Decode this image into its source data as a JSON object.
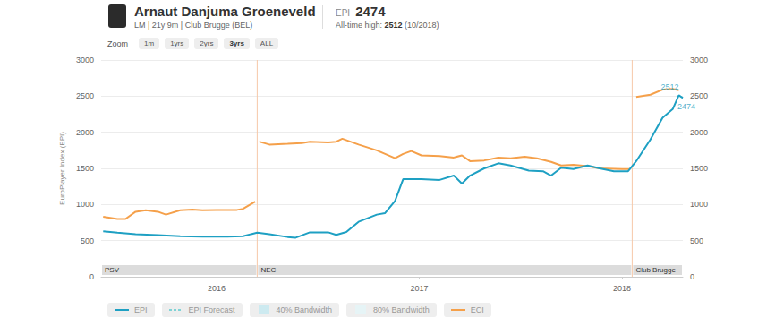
{
  "header": {
    "name": "Arnaut Danjuma Groeneveld",
    "info": "LM | 21y 9m | Club Brugge (BEL)",
    "epi_label": "EPI",
    "epi": 2474,
    "all_time_high_label": "All-time high:",
    "all_time_high": 2512,
    "all_time_high_date": "(10/2018)"
  },
  "zoom": {
    "label": "Zoom",
    "options": [
      "1m",
      "1yrs",
      "2yrs",
      "3yrs",
      "ALL"
    ],
    "selected": "3yrs"
  },
  "chart_data": {
    "type": "line",
    "ylabel": "EuroPlayer Index (EPI)",
    "xlim": [
      2015.43,
      2018.3
    ],
    "xticks": [
      2016,
      2017,
      2018
    ],
    "ylim": [
      0,
      3000
    ],
    "yticks": [
      0,
      500,
      1000,
      1500,
      2000,
      2500,
      3000
    ],
    "y2lim": [
      0,
      3000
    ],
    "y2ticks": [
      0,
      500,
      1000,
      1500,
      2000,
      2500,
      3000
    ],
    "grid": true,
    "legend": "bottom",
    "series": [
      {
        "name": "EPI",
        "color": "#1ea0c3",
        "line_style": "solid",
        "x": [
          2015.44,
          2015.51,
          2015.6,
          2015.71,
          2015.82,
          2015.93,
          2016.04,
          2016.13,
          2016.17,
          2016.2,
          2016.26,
          2016.35,
          2016.39,
          2016.46,
          2016.55,
          2016.59,
          2016.64,
          2016.7,
          2016.79,
          2016.83,
          2016.88,
          2016.92,
          2017.01,
          2017.1,
          2017.17,
          2017.21,
          2017.25,
          2017.32,
          2017.39,
          2017.45,
          2017.54,
          2017.61,
          2017.65,
          2017.7,
          2017.76,
          2017.83,
          2017.89,
          2017.96,
          2018.03,
          2018.07,
          2018.14,
          2018.2,
          2018.25,
          2018.28,
          2018.3
        ],
        "values": [
          630,
          610,
          590,
          575,
          560,
          555,
          555,
          560,
          590,
          610,
          590,
          550,
          540,
          615,
          615,
          580,
          620,
          760,
          860,
          880,
          1050,
          1350,
          1350,
          1340,
          1400,
          1290,
          1400,
          1500,
          1570,
          1540,
          1470,
          1460,
          1400,
          1510,
          1490,
          1540,
          1500,
          1460,
          1460,
          1600,
          1900,
          2200,
          2320,
          2512,
          2474
        ]
      },
      {
        "name": "EPI Forecast",
        "color": "#7fd3d6",
        "line_style": "dashed",
        "x": [],
        "values": []
      },
      {
        "name": "40% Bandwidth",
        "type": "area",
        "color": "#cdeaf0",
        "x": [],
        "values": []
      },
      {
        "name": "80% Bandwidth",
        "type": "area",
        "color": "#e6f4f6",
        "x": [],
        "values": []
      },
      {
        "name": "ECI",
        "color": "#f5a04a",
        "line_style": "solid",
        "x": [
          2015.44,
          2015.51,
          2015.55,
          2015.6,
          2015.65,
          2015.71,
          2015.75,
          2015.82,
          2015.88,
          2015.93,
          2016.0,
          2016.1,
          2016.13,
          2016.19,
          2016.2,
          2016.21,
          2016.26,
          2016.35,
          2016.42,
          2016.46,
          2016.55,
          2016.59,
          2016.62,
          2016.7,
          2016.79,
          2016.88,
          2016.92,
          2016.96,
          2017.01,
          2017.1,
          2017.17,
          2017.21,
          2017.25,
          2017.32,
          2017.39,
          2017.45,
          2017.52,
          2017.58,
          2017.65,
          2017.7,
          2017.76,
          2017.83,
          2017.89,
          2018.0,
          2018.04,
          2018.05,
          2018.07,
          2018.14,
          2018.2,
          2018.25,
          2018.28
        ],
        "values": [
          830,
          800,
          800,
          900,
          920,
          900,
          860,
          920,
          930,
          920,
          925,
          925,
          940,
          1040,
          null,
          1870,
          1830,
          1840,
          1850,
          1870,
          1860,
          1870,
          1910,
          1830,
          1750,
          1640,
          1700,
          1740,
          1680,
          1670,
          1650,
          1680,
          1600,
          1610,
          1650,
          1640,
          1660,
          1640,
          1590,
          1540,
          1550,
          1530,
          1500,
          1490,
          1490,
          null,
          2490,
          2520,
          2590,
          2600,
          2580
        ]
      }
    ],
    "periods": [
      {
        "label": "PSV",
        "start": 2015.43,
        "end": 2016.2
      },
      {
        "label": "NEC",
        "start": 2016.2,
        "end": 2018.05
      },
      {
        "label": "Club Brugge",
        "start": 2018.05,
        "end": 2018.3
      }
    ],
    "annotations": [
      {
        "text": "2512",
        "x": 2018.28,
        "y": 2512
      },
      {
        "text": "2474",
        "x": 2018.3,
        "y": 2474
      }
    ]
  }
}
